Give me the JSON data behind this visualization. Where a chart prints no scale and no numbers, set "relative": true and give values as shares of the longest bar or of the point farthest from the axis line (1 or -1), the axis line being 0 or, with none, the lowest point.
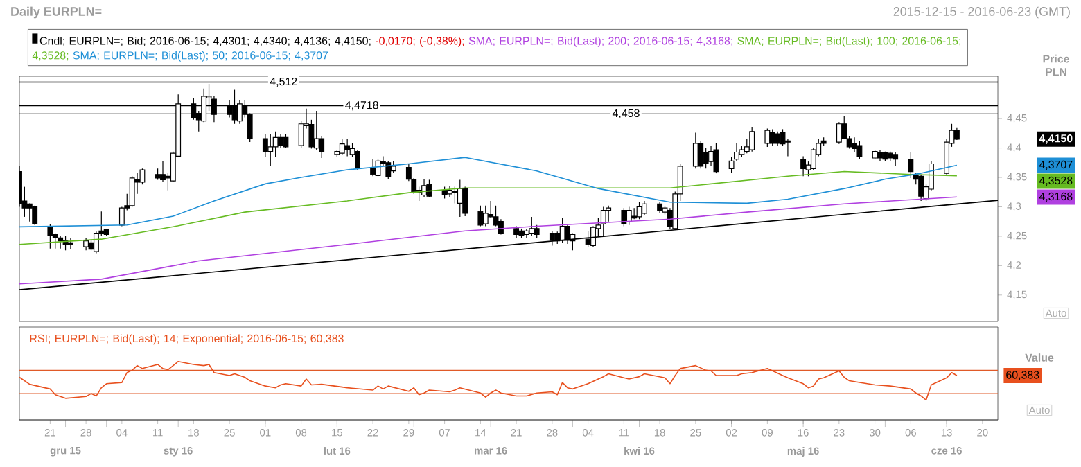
{
  "chart_data": [
    {
      "type": "candlestick",
      "title": "Daily EURPLN=",
      "subtitle": "2015-12-15 - 2016-06-23 (GMT)",
      "ylabel": "Price PLN",
      "legend": "top left",
      "tick_labels": "y",
      "xlim": [
        "2015-12-15",
        "2016-06-23"
      ],
      "ylim": [
        4.105,
        4.522
      ],
      "yticks": [
        {
          "value": 4.15,
          "label": "4,15"
        },
        {
          "value": 4.2,
          "label": "4,2"
        },
        {
          "value": 4.25,
          "label": "4,25"
        },
        {
          "value": 4.3,
          "label": "4,3"
        },
        {
          "value": 4.35,
          "label": "4,35"
        },
        {
          "value": 4.4,
          "label": "4,4"
        },
        {
          "value": 4.45,
          "label": "4,45"
        }
      ],
      "series": [
        {
          "type": "candlestick",
          "name": "Cndl; EURPLN=; Bid; 2016-06-15; 4,4301; 4,4340; 4,4136; 4,4150;",
          "color": "#000000",
          "x": [
            "2015-12-15",
            "2015-12-16",
            "2015-12-17",
            "2015-12-18",
            "2015-12-21",
            "2015-12-22",
            "2015-12-23",
            "2015-12-24",
            "2015-12-25",
            "2015-12-28",
            "2015-12-29",
            "2015-12-30",
            "2015-12-31",
            "2016-01-01",
            "2016-01-04",
            "2016-01-05",
            "2016-01-06",
            "2016-01-07",
            "2016-01-08",
            "2016-01-11",
            "2016-01-12",
            "2016-01-13",
            "2016-01-14",
            "2016-01-15",
            "2016-01-18",
            "2016-01-19",
            "2016-01-20",
            "2016-01-21",
            "2016-01-22",
            "2016-01-25",
            "2016-01-26",
            "2016-01-27",
            "2016-01-28",
            "2016-01-29",
            "2016-02-01",
            "2016-02-02",
            "2016-02-03",
            "2016-02-04",
            "2016-02-05",
            "2016-02-08",
            "2016-02-09",
            "2016-02-10",
            "2016-02-11",
            "2016-02-12",
            "2016-02-15",
            "2016-02-16",
            "2016-02-17",
            "2016-02-18",
            "2016-02-19",
            "2016-02-22",
            "2016-02-23",
            "2016-02-24",
            "2016-02-25",
            "2016-02-26",
            "2016-02-29",
            "2016-03-01",
            "2016-03-02",
            "2016-03-03",
            "2016-03-04",
            "2016-03-07",
            "2016-03-08",
            "2016-03-09",
            "2016-03-10",
            "2016-03-11",
            "2016-03-14",
            "2016-03-15",
            "2016-03-16",
            "2016-03-17",
            "2016-03-18",
            "2016-03-21",
            "2016-03-22",
            "2016-03-23",
            "2016-03-24",
            "2016-03-25",
            "2016-03-28",
            "2016-03-29",
            "2016-03-30",
            "2016-03-31",
            "2016-04-01",
            "2016-04-04",
            "2016-04-05",
            "2016-04-06",
            "2016-04-07",
            "2016-04-08",
            "2016-04-11",
            "2016-04-12",
            "2016-04-13",
            "2016-04-14",
            "2016-04-15",
            "2016-04-18",
            "2016-04-19",
            "2016-04-20",
            "2016-04-21",
            "2016-04-22",
            "2016-04-25",
            "2016-04-26",
            "2016-04-27",
            "2016-04-28",
            "2016-04-29",
            "2016-05-02",
            "2016-05-03",
            "2016-05-04",
            "2016-05-05",
            "2016-05-06",
            "2016-05-09",
            "2016-05-10",
            "2016-05-11",
            "2016-05-12",
            "2016-05-13",
            "2016-05-16",
            "2016-05-17",
            "2016-05-18",
            "2016-05-19",
            "2016-05-20",
            "2016-05-23",
            "2016-05-24",
            "2016-05-25",
            "2016-05-26",
            "2016-05-27",
            "2016-05-30",
            "2016-05-31",
            "2016-06-01",
            "2016-06-02",
            "2016-06-03",
            "2016-06-06",
            "2016-06-07",
            "2016-06-08",
            "2016-06-09",
            "2016-06-10",
            "2016-06-13",
            "2016-06-14",
            "2016-06-15"
          ],
          "ohlc": [
            [
              4.36,
              4.369,
              4.3,
              4.306
            ],
            [
              4.31,
              4.334,
              4.283,
              4.298
            ],
            [
              4.305,
              4.306,
              4.275,
              4.298
            ],
            [
              4.3,
              4.302,
              4.269,
              4.271
            ],
            [
              4.265,
              4.271,
              4.229,
              4.251
            ],
            [
              4.253,
              4.255,
              4.229,
              4.247
            ],
            [
              4.247,
              4.251,
              4.229,
              4.242
            ],
            [
              4.242,
              4.25,
              4.226,
              4.236
            ],
            [
              4.239,
              4.247,
              4.228,
              4.236
            ],
            [
              4.232,
              4.247,
              4.226,
              4.242
            ],
            [
              4.239,
              4.243,
              4.226,
              4.228
            ],
            [
              4.224,
              4.258,
              4.221,
              4.255
            ],
            [
              4.259,
              4.292,
              4.251,
              4.255
            ],
            [
              4.261,
              4.263,
              4.251,
              4.253
            ],
            [
              4.269,
              4.3,
              4.267,
              4.298
            ],
            [
              4.302,
              4.322,
              4.294,
              4.298
            ],
            [
              4.302,
              4.352,
              4.3,
              4.349
            ],
            [
              4.347,
              4.357,
              4.322,
              4.342
            ],
            [
              4.342,
              4.365,
              4.338,
              4.363
            ],
            [
              4.355,
              4.365,
              4.346,
              4.349
            ],
            [
              4.355,
              4.377,
              4.342,
              4.346
            ],
            [
              4.352,
              4.357,
              4.328,
              4.349
            ],
            [
              4.344,
              4.394,
              4.342,
              4.391
            ],
            [
              4.386,
              4.491,
              4.385,
              4.475
            ],
            [
              4.475,
              4.485,
              4.448,
              4.452
            ],
            [
              4.459,
              4.463,
              4.428,
              4.448
            ],
            [
              4.446,
              4.501,
              4.444,
              4.488
            ],
            [
              4.485,
              4.509,
              4.463,
              4.488
            ],
            [
              4.483,
              4.488,
              4.444,
              4.457
            ],
            [
              4.473,
              4.481,
              4.452,
              4.457
            ],
            [
              4.473,
              4.499,
              4.441,
              4.448
            ],
            [
              4.446,
              4.481,
              4.441,
              4.475
            ],
            [
              4.473,
              4.481,
              4.452,
              4.457
            ],
            [
              4.457,
              4.459,
              4.41,
              4.416
            ],
            [
              4.416,
              4.424,
              4.385,
              4.393
            ],
            [
              4.394,
              4.424,
              4.369,
              4.402
            ],
            [
              4.402,
              4.428,
              4.385,
              4.418
            ],
            [
              4.418,
              4.424,
              4.4,
              4.404
            ],
            [
              4.418,
              4.424,
              4.4,
              4.402
            ],
            [
              4.404,
              4.446,
              4.4,
              4.441
            ],
            [
              4.438,
              4.467,
              4.433,
              4.441
            ],
            [
              4.44,
              4.448,
              4.399,
              4.402
            ],
            [
              4.4,
              4.463,
              4.397,
              4.416
            ],
            [
              4.416,
              4.42,
              4.383,
              4.394
            ],
            [
              4.389,
              4.397,
              4.385,
              4.394
            ],
            [
              4.391,
              4.416,
              4.389,
              4.407
            ],
            [
              4.404,
              4.416,
              4.386,
              4.397
            ],
            [
              4.389,
              4.408,
              4.385,
              4.399
            ],
            [
              4.394,
              4.397,
              4.363,
              4.365
            ],
            [
              4.367,
              4.381,
              4.352,
              4.355
            ],
            [
              4.353,
              4.381,
              4.352,
              4.378
            ],
            [
              4.377,
              4.386,
              4.369,
              4.373
            ],
            [
              4.375,
              4.378,
              4.347,
              4.352
            ],
            [
              4.361,
              4.377,
              4.357,
              4.369
            ],
            [
              4.367,
              4.373,
              4.344,
              4.347
            ],
            [
              4.346,
              4.349,
              4.322,
              4.324
            ],
            [
              4.328,
              4.334,
              4.31,
              4.324
            ],
            [
              4.32,
              4.347,
              4.316,
              4.336
            ],
            [
              4.338,
              4.346,
              4.316,
              4.318
            ],
            [
              4.328,
              4.334,
              4.314,
              4.32
            ],
            [
              4.322,
              4.336,
              4.316,
              4.328
            ],
            [
              4.326,
              4.334,
              4.306,
              4.324
            ],
            [
              4.306,
              4.346,
              4.283,
              4.331
            ],
            [
              4.331,
              4.334,
              4.284,
              4.289
            ],
            [
              4.292,
              4.302,
              4.267,
              4.269
            ],
            [
              4.271,
              4.302,
              4.267,
              4.289
            ],
            [
              4.287,
              4.31,
              4.281,
              4.283
            ],
            [
              4.283,
              4.302,
              4.267,
              4.269
            ],
            [
              4.275,
              4.279,
              4.253,
              4.255
            ],
            [
              4.263,
              4.267,
              4.247,
              4.253
            ],
            [
              4.259,
              4.263,
              4.247,
              4.251
            ],
            [
              4.253,
              4.263,
              4.247,
              4.259
            ],
            [
              4.255,
              4.283,
              4.25,
              4.263
            ],
            [
              4.263,
              4.269,
              4.247,
              4.253
            ],
            [
              4.255,
              4.259,
              4.234,
              4.243
            ],
            [
              4.255,
              4.258,
              4.237,
              4.242
            ],
            [
              4.243,
              4.281,
              4.239,
              4.267
            ],
            [
              4.267,
              4.271,
              4.237,
              4.243
            ],
            [
              4.242,
              4.255,
              4.226,
              4.253
            ],
            [
              4.245,
              4.259,
              4.232,
              4.236
            ],
            [
              4.234,
              4.267,
              4.232,
              4.265
            ],
            [
              4.263,
              4.281,
              4.25,
              4.269
            ],
            [
              4.271,
              4.3,
              4.251,
              4.294
            ],
            [
              4.294,
              4.302,
              4.275,
              4.298
            ],
            [
              4.294,
              4.298,
              4.267,
              4.271
            ],
            [
              4.275,
              4.3,
              4.269,
              4.294
            ],
            [
              4.284,
              4.298,
              4.279,
              4.281
            ],
            [
              4.283,
              4.308,
              4.279,
              4.3
            ],
            [
              4.289,
              4.31,
              4.286,
              4.305
            ],
            [
              4.305,
              4.308,
              4.289,
              4.294
            ],
            [
              4.291,
              4.302,
              4.287,
              4.298
            ],
            [
              4.294,
              4.298,
              4.263,
              4.267
            ],
            [
              4.263,
              4.326,
              4.261,
              4.322
            ],
            [
              4.322,
              4.373,
              4.31,
              4.369
            ],
            [
              4.369,
              4.426,
              4.365,
              4.408
            ],
            [
              4.407,
              4.412,
              4.365,
              4.369
            ],
            [
              4.393,
              4.4,
              4.365,
              4.373
            ],
            [
              4.377,
              4.404,
              4.369,
              4.394
            ],
            [
              4.397,
              4.408,
              4.357,
              4.36
            ],
            [
              4.365,
              4.385,
              4.357,
              4.378
            ],
            [
              4.381,
              4.408,
              4.377,
              4.393
            ],
            [
              4.389,
              4.404,
              4.385,
              4.397
            ],
            [
              4.394,
              4.416,
              4.391,
              4.402
            ],
            [
              4.397,
              4.436,
              4.394,
              4.428
            ],
            [
              4.408,
              4.433,
              4.402,
              4.43
            ],
            [
              4.426,
              4.432,
              4.404,
              4.408
            ],
            [
              4.424,
              4.428,
              4.404,
              4.408
            ],
            [
              4.426,
              4.432,
              4.404,
              4.407
            ],
            [
              4.412,
              4.416,
              4.386,
              4.41
            ],
            [
              4.381,
              4.386,
              4.352,
              4.365
            ],
            [
              4.363,
              4.377,
              4.352,
              4.371
            ],
            [
              4.365,
              4.4,
              4.363,
              4.397
            ],
            [
              4.389,
              4.416,
              4.386,
              4.408
            ],
            [
              4.412,
              4.418,
              4.404,
              4.408
            ],
            [
              4.41,
              4.444,
              4.407,
              4.441
            ],
            [
              4.441,
              4.454,
              4.415,
              4.416
            ],
            [
              4.416,
              4.42,
              4.399,
              4.402
            ],
            [
              4.408,
              4.418,
              4.393,
              4.399
            ],
            [
              4.404,
              4.412,
              4.381,
              4.385
            ],
            [
              4.383,
              4.397,
              4.381,
              4.394
            ],
            [
              4.393,
              4.397,
              4.378,
              4.383
            ],
            [
              4.393,
              4.394,
              4.377,
              4.381
            ],
            [
              4.391,
              4.394,
              4.378,
              4.383
            ],
            [
              4.389,
              4.393,
              4.369,
              4.381
            ],
            [
              4.381,
              4.393,
              4.349,
              4.36
            ],
            [
              4.353,
              4.357,
              4.338,
              4.347
            ],
            [
              4.352,
              4.355,
              4.31,
              4.318
            ],
            [
              4.314,
              4.338,
              4.31,
              4.334
            ],
            [
              4.33,
              4.377,
              4.328,
              4.373
            ],
            [
              4.357,
              4.416,
              4.355,
              4.41
            ],
            [
              4.408,
              4.441,
              4.402,
              4.43
            ],
            [
              4.4301,
              4.434,
              4.4136,
              4.415
            ]
          ]
        },
        {
          "type": "line",
          "name": "SMA; EURPLN=; Bid(Last); 200; 2016-06-15; 4,3168;",
          "color": "#b040e0",
          "x": [
            "2015-12-15",
            "2015-12-31",
            "2016-01-19",
            "2016-02-17",
            "2016-03-11",
            "2016-03-25",
            "2016-04-20",
            "2016-05-05",
            "2016-05-24",
            "2016-06-15"
          ],
          "values": [
            4.169,
            4.177,
            4.208,
            4.236,
            4.259,
            4.267,
            4.279,
            4.291,
            4.305,
            4.3168
          ]
        },
        {
          "type": "line",
          "name": "SMA; EURPLN=; Bid(Last); 100; 2016-06-15; 4,3528;",
          "color": "#66bb22",
          "x": [
            "2015-12-15",
            "2015-12-31",
            "2016-01-14",
            "2016-01-28",
            "2016-02-17",
            "2016-02-29",
            "2016-03-11",
            "2016-04-08",
            "2016-04-20",
            "2016-05-13",
            "2016-05-24",
            "2016-06-06",
            "2016-06-15"
          ],
          "values": [
            4.236,
            4.245,
            4.266,
            4.291,
            4.31,
            4.324,
            4.332,
            4.332,
            4.332,
            4.352,
            4.36,
            4.355,
            4.3528
          ]
        },
        {
          "type": "line",
          "name": "SMA; EURPLN=; Bid(Last); 50; 2016-06-15; 4,3707",
          "color": "#1e8fd6",
          "x": [
            "2015-12-15",
            "2016-01-05",
            "2016-01-14",
            "2016-01-22",
            "2016-02-01",
            "2016-02-08",
            "2016-02-17",
            "2016-02-29",
            "2016-03-11",
            "2016-03-25",
            "2016-04-06",
            "2016-04-20",
            "2016-05-05",
            "2016-05-13",
            "2016-05-24",
            "2016-06-01",
            "2016-06-08",
            "2016-06-15"
          ],
          "values": [
            4.266,
            4.269,
            4.284,
            4.31,
            4.339,
            4.35,
            4.363,
            4.373,
            4.384,
            4.361,
            4.331,
            4.308,
            4.306,
            4.313,
            4.331,
            4.347,
            4.357,
            4.3707
          ]
        },
        {
          "type": "line",
          "color": "#000000",
          "x": [
            "2015-12-15",
            "2016-06-23"
          ],
          "values": [
            4.159,
            4.311
          ]
        }
      ],
      "ref_lines": [
        {
          "axis": "y",
          "value": 4.512,
          "label": "4,512",
          "color": "#000000"
        },
        {
          "axis": "y",
          "value": 4.4718,
          "label": "4,4718",
          "color": "#000000"
        },
        {
          "axis": "y",
          "value": 4.458,
          "label": "4,458",
          "color": "#000000"
        }
      ],
      "annotations": [
        "-0,0170; (-0,38%);",
        "4,4150",
        "4,3168",
        "4,3528",
        "4,3707",
        "Auto"
      ]
    },
    {
      "type": "line",
      "relative": true,
      "ylabel": "Value",
      "legend": "top left",
      "tick_labels": "x",
      "xlim": [
        "2015-12-15",
        "2016-06-23"
      ],
      "xticks": [
        {
          "value": "2015-12-21",
          "label": "21"
        },
        {
          "value": "2015-12-28",
          "label": "28"
        },
        {
          "value": "2016-01-04",
          "label": "04"
        },
        {
          "value": "2016-01-11",
          "label": "11"
        },
        {
          "value": "2016-01-18",
          "label": "18"
        },
        {
          "value": "2016-01-25",
          "label": "25"
        },
        {
          "value": "2016-02-01",
          "label": "01"
        },
        {
          "value": "2016-02-08",
          "label": "08"
        },
        {
          "value": "2016-02-15",
          "label": "15"
        },
        {
          "value": "2016-02-22",
          "label": "22"
        },
        {
          "value": "2016-02-29",
          "label": "29"
        },
        {
          "value": "2016-03-07",
          "label": "07"
        },
        {
          "value": "2016-03-14",
          "label": "14"
        },
        {
          "value": "2016-03-21",
          "label": "21"
        },
        {
          "value": "2016-03-28",
          "label": "28"
        },
        {
          "value": "2016-04-04",
          "label": "04"
        },
        {
          "value": "2016-04-11",
          "label": "11"
        },
        {
          "value": "2016-04-18",
          "label": "18"
        },
        {
          "value": "2016-04-25",
          "label": "25"
        },
        {
          "value": "2016-05-02",
          "label": "02"
        },
        {
          "value": "2016-05-09",
          "label": "09"
        },
        {
          "value": "2016-05-16",
          "label": "16"
        },
        {
          "value": "2016-05-23",
          "label": "23"
        },
        {
          "value": "2016-05-30",
          "label": "30"
        },
        {
          "value": "2016-06-06",
          "label": "06"
        },
        {
          "value": "2016-06-13",
          "label": "13"
        },
        {
          "value": "2016-06-20",
          "label": "20"
        }
      ],
      "x2lim": [
        "2015-12-15",
        "2016-06-23"
      ],
      "x2ticks": [
        {
          "value": "2015-12-24",
          "label": "gru 15"
        },
        {
          "value": "2016-01-01",
          "label": null
        },
        {
          "value": "2016-01-15",
          "label": "sty 16"
        },
        {
          "value": "2016-02-01",
          "label": null
        },
        {
          "value": "2016-02-15",
          "label": "lut 16"
        },
        {
          "value": "2016-03-01",
          "label": null
        },
        {
          "value": "2016-03-16",
          "label": "mar 16"
        },
        {
          "value": "2016-04-01",
          "label": null
        },
        {
          "value": "2016-04-14",
          "label": "kwi 16"
        },
        {
          "value": "2016-05-02",
          "label": null
        },
        {
          "value": "2016-05-16",
          "label": "maj 16"
        },
        {
          "value": "2016-06-01",
          "label": null
        },
        {
          "value": "2016-06-13",
          "label": "cze 16"
        }
      ],
      "series": [
        {
          "name": "RSI; EURPLN=; Bid(Last); 14; Exponential; 2016-06-15; 60,383",
          "color": "#e8501e",
          "x": [
            "2015-12-15",
            "2015-12-17",
            "2015-12-21",
            "2015-12-22",
            "2015-12-24",
            "2015-12-28",
            "2015-12-29",
            "2015-12-30",
            "2015-12-31",
            "2016-01-01",
            "2016-01-04",
            "2016-01-05",
            "2016-01-06",
            "2016-01-07",
            "2016-01-08",
            "2016-01-11",
            "2016-01-12",
            "2016-01-13",
            "2016-01-14",
            "2016-01-15",
            "2016-01-18",
            "2016-01-20",
            "2016-01-21",
            "2016-01-22",
            "2016-01-25",
            "2016-01-26",
            "2016-01-28",
            "2016-01-29",
            "2016-02-01",
            "2016-02-03",
            "2016-02-04",
            "2016-02-05",
            "2016-02-08",
            "2016-02-09",
            "2016-02-10",
            "2016-02-12",
            "2016-02-17",
            "2016-02-22",
            "2016-02-23",
            "2016-02-24",
            "2016-02-25",
            "2016-02-29",
            "2016-03-01",
            "2016-03-02",
            "2016-03-03",
            "2016-03-04",
            "2016-03-08",
            "2016-03-09",
            "2016-03-10",
            "2016-03-14",
            "2016-03-15",
            "2016-03-16",
            "2016-03-17",
            "2016-03-18",
            "2016-03-21",
            "2016-03-23",
            "2016-03-25",
            "2016-03-28",
            "2016-03-29",
            "2016-03-30",
            "2016-03-31",
            "2016-04-01",
            "2016-04-04",
            "2016-04-06",
            "2016-04-07",
            "2016-04-08",
            "2016-04-11",
            "2016-04-12",
            "2016-04-14",
            "2016-04-15",
            "2016-04-19",
            "2016-04-20",
            "2016-04-21",
            "2016-04-22",
            "2016-04-25",
            "2016-04-27",
            "2016-04-28",
            "2016-04-29",
            "2016-05-03",
            "2016-05-04",
            "2016-05-06",
            "2016-05-09",
            "2016-05-12",
            "2016-05-13",
            "2016-05-16",
            "2016-05-17",
            "2016-05-18",
            "2016-05-19",
            "2016-05-20",
            "2016-05-23",
            "2016-05-24",
            "2016-05-25",
            "2016-05-27",
            "2016-05-30",
            "2016-06-02",
            "2016-06-06",
            "2016-06-07",
            "2016-06-08",
            "2016-06-09",
            "2016-06-10",
            "2016-06-13",
            "2016-06-14",
            "2016-06-15"
          ],
          "values": [
            0.73,
            0.61,
            0.53,
            0.43,
            0.37,
            0.4,
            0.45,
            0.41,
            0.55,
            0.62,
            0.64,
            0.81,
            0.85,
            0.93,
            0.88,
            0.95,
            0.88,
            0.86,
            0.93,
            1.0,
            0.95,
            0.93,
            0.95,
            0.81,
            0.76,
            0.79,
            0.73,
            0.67,
            0.58,
            0.55,
            0.6,
            0.62,
            0.58,
            0.7,
            0.6,
            0.61,
            0.55,
            0.51,
            0.58,
            0.53,
            0.58,
            0.49,
            0.55,
            0.43,
            0.46,
            0.51,
            0.48,
            0.51,
            0.55,
            0.46,
            0.39,
            0.46,
            0.51,
            0.46,
            0.41,
            0.41,
            0.46,
            0.48,
            0.43,
            0.64,
            0.55,
            0.53,
            0.62,
            0.7,
            0.74,
            0.79,
            0.72,
            0.7,
            0.74,
            0.79,
            0.72,
            0.62,
            0.76,
            0.88,
            0.93,
            0.85,
            0.84,
            0.76,
            0.76,
            0.79,
            0.81,
            0.88,
            0.76,
            0.72,
            0.62,
            0.55,
            0.58,
            0.7,
            0.72,
            0.84,
            0.73,
            0.67,
            0.64,
            0.6,
            0.58,
            0.53,
            0.46,
            0.41,
            0.34,
            0.6,
            0.72,
            0.81,
            0.76
          ]
        }
      ],
      "ref_lines": [
        {
          "axis": "y",
          "value": 0.85,
          "color": "#e05a28"
        },
        {
          "axis": "y",
          "value": 0.45,
          "color": "#e05a28"
        }
      ],
      "annotations": [
        "60,383",
        "Auto"
      ]
    }
  ]
}
